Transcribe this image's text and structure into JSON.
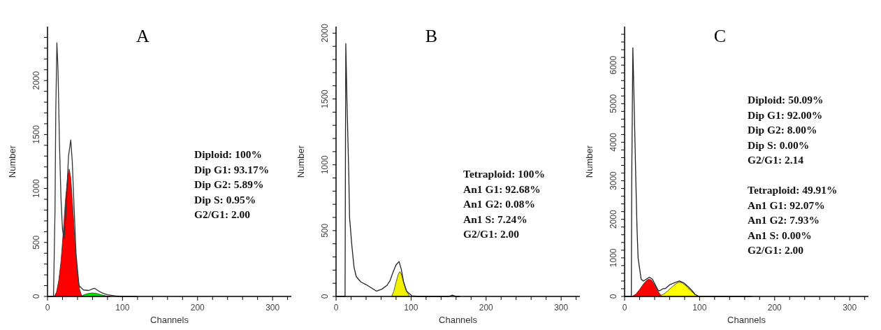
{
  "chart_data": [
    {
      "type": "line",
      "title": "A",
      "xlabel": "Channels",
      "ylabel": "Number",
      "xlim": [
        0,
        325
      ],
      "ylim": [
        0,
        2500
      ],
      "xticks": [
        0,
        {
          "value": 20,
          "label": null
        },
        {
          "value": 40,
          "label": null
        },
        {
          "value": 60,
          "label": null
        },
        {
          "value": 80,
          "label": null
        },
        100,
        {
          "value": 120,
          "label": null
        },
        {
          "value": 140,
          "label": null
        },
        {
          "value": 160,
          "label": null
        },
        {
          "value": 180,
          "label": null
        },
        200,
        {
          "value": 220,
          "label": null
        },
        {
          "value": 240,
          "label": null
        },
        {
          "value": 260,
          "label": null
        },
        {
          "value": 280,
          "label": null
        },
        300,
        {
          "value": 320,
          "label": null
        }
      ],
      "yticks": [
        0,
        {
          "value": 100,
          "label": null
        },
        {
          "value": 200,
          "label": null
        },
        {
          "value": 300,
          "label": null
        },
        {
          "value": 400,
          "label": null
        },
        500,
        {
          "value": 600,
          "label": null
        },
        {
          "value": 700,
          "label": null
        },
        {
          "value": 800,
          "label": null
        },
        {
          "value": 900,
          "label": null
        },
        1000,
        {
          "value": 1100,
          "label": null
        },
        {
          "value": 1200,
          "label": null
        },
        {
          "value": 1300,
          "label": null
        },
        {
          "value": 1400,
          "label": null
        },
        1500,
        {
          "value": 1600,
          "label": null
        },
        {
          "value": 1700,
          "label": null
        },
        {
          "value": 1800,
          "label": null
        },
        {
          "value": 1900,
          "label": null
        },
        2000,
        {
          "value": 2100,
          "label": null
        },
        {
          "value": 2200,
          "label": null
        },
        {
          "value": 2300,
          "label": null
        },
        {
          "value": 2400,
          "label": null
        }
      ],
      "annotations": [
        "Diploid: 100%\nDip G1: 93.17%\nDip G2: 5.89%\nDip S: 0.95%\nG2/G1: 2.00"
      ],
      "series": [
        {
          "type": "area",
          "color": "#ff0000",
          "x": [
            9,
            12,
            15,
            18,
            21,
            24,
            27,
            29,
            31,
            34,
            37,
            40,
            43,
            46
          ],
          "values": [
            0,
            40,
            150,
            330,
            600,
            900,
            1120,
            1180,
            1100,
            800,
            450,
            200,
            60,
            0
          ]
        },
        {
          "type": "area",
          "color": "#00e000",
          "x": [
            44,
            50,
            55,
            60,
            63,
            67,
            72,
            78,
            84
          ],
          "values": [
            0,
            20,
            28,
            32,
            30,
            25,
            15,
            5,
            0
          ]
        },
        {
          "color": "#333333",
          "x": [
            0,
            8,
            10,
            11,
            12.5,
            14,
            16,
            18,
            20,
            22,
            24,
            26,
            28,
            31,
            33,
            35,
            38,
            42,
            48,
            55,
            60,
            63,
            67,
            72,
            80,
            90,
            100,
            120
          ],
          "values": [
            0,
            0,
            800,
            1700,
            2350,
            2100,
            1400,
            900,
            620,
            530,
            700,
            1000,
            1300,
            1450,
            1250,
            900,
            400,
            100,
            60,
            55,
            70,
            75,
            55,
            35,
            15,
            5,
            0,
            0
          ]
        }
      ]
    },
    {
      "type": "line",
      "title": "B",
      "xlabel": "Channels",
      "ylabel": "Number",
      "xlim": [
        0,
        325
      ],
      "ylim": [
        0,
        2050
      ],
      "xticks": [
        0,
        {
          "value": 20,
          "label": null
        },
        {
          "value": 40,
          "label": null
        },
        {
          "value": 60,
          "label": null
        },
        {
          "value": 80,
          "label": null
        },
        100,
        {
          "value": 120,
          "label": null
        },
        {
          "value": 140,
          "label": null
        },
        {
          "value": 160,
          "label": null
        },
        {
          "value": 180,
          "label": null
        },
        200,
        {
          "value": 220,
          "label": null
        },
        {
          "value": 240,
          "label": null
        },
        {
          "value": 260,
          "label": null
        },
        {
          "value": 280,
          "label": null
        },
        300,
        {
          "value": 320,
          "label": null
        }
      ],
      "yticks": [
        0,
        {
          "value": 100,
          "label": null
        },
        {
          "value": 200,
          "label": null
        },
        {
          "value": 300,
          "label": null
        },
        {
          "value": 400,
          "label": null
        },
        500,
        {
          "value": 600,
          "label": null
        },
        {
          "value": 700,
          "label": null
        },
        {
          "value": 800,
          "label": null
        },
        {
          "value": 900,
          "label": null
        },
        1000,
        {
          "value": 1100,
          "label": null
        },
        {
          "value": 1200,
          "label": null
        },
        {
          "value": 1300,
          "label": null
        },
        {
          "value": 1400,
          "label": null
        },
        1500,
        {
          "value": 1600,
          "label": null
        },
        {
          "value": 1700,
          "label": null
        },
        {
          "value": 1800,
          "label": null
        },
        {
          "value": 1900,
          "label": null
        },
        2000
      ],
      "annotations": [
        "Tetraploid: 100%\nAn1 G1: 92.68%\nAn1 G2: 0.08%\nAn1 S: 7.24%\nG2/G1: 2.00"
      ],
      "series": [
        {
          "type": "area",
          "color": "#f0f000",
          "x": [
            74,
            77,
            80,
            83,
            85,
            87,
            90,
            94,
            98
          ],
          "values": [
            0,
            40,
            110,
            170,
            188,
            170,
            110,
            40,
            0
          ]
        },
        {
          "color": "#222222",
          "x": [
            0,
            12,
            12.5,
            13,
            14.5,
            17,
            18,
            21,
            24,
            27,
            33,
            40,
            47,
            54,
            61,
            68,
            72,
            76,
            80,
            84,
            87,
            90,
            94,
            101,
            110,
            130,
            150,
            155,
            160,
            165
          ],
          "values": [
            0,
            0,
            1000,
            1920,
            1500,
            920,
            600,
            390,
            220,
            150,
            110,
            90,
            65,
            40,
            55,
            85,
            120,
            185,
            240,
            265,
            205,
            110,
            40,
            5,
            0,
            0,
            0,
            10,
            0,
            0
          ]
        }
      ]
    },
    {
      "type": "line",
      "title": "C",
      "xlabel": "Channels",
      "ylabel": "Number",
      "xlim": [
        0,
        325
      ],
      "ylim": [
        0,
        7000
      ],
      "xticks": [
        0,
        {
          "value": 20,
          "label": null
        },
        {
          "value": 40,
          "label": null
        },
        {
          "value": 60,
          "label": null
        },
        {
          "value": 80,
          "label": null
        },
        100,
        {
          "value": 120,
          "label": null
        },
        {
          "value": 140,
          "label": null
        },
        {
          "value": 160,
          "label": null
        },
        {
          "value": 180,
          "label": null
        },
        200,
        {
          "value": 220,
          "label": null
        },
        {
          "value": 240,
          "label": null
        },
        {
          "value": 260,
          "label": null
        },
        {
          "value": 280,
          "label": null
        },
        300,
        {
          "value": 320,
          "label": null
        }
      ],
      "yticks": [
        0,
        {
          "value": 200,
          "label": null
        },
        {
          "value": 400,
          "label": null
        },
        {
          "value": 600,
          "label": null
        },
        {
          "value": 800,
          "label": null
        },
        1000,
        {
          "value": 1200,
          "label": null
        },
        {
          "value": 1400,
          "label": null
        },
        {
          "value": 1600,
          "label": null
        },
        {
          "value": 1800,
          "label": null
        },
        2000,
        {
          "value": 2200,
          "label": null
        },
        {
          "value": 2400,
          "label": null
        },
        {
          "value": 2600,
          "label": null
        },
        {
          "value": 2800,
          "label": null
        },
        3000,
        {
          "value": 3200,
          "label": null
        },
        {
          "value": 3400,
          "label": null
        },
        {
          "value": 3600,
          "label": null
        },
        {
          "value": 3800,
          "label": null
        },
        4000,
        {
          "value": 4200,
          "label": null
        },
        {
          "value": 4400,
          "label": null
        },
        {
          "value": 4600,
          "label": null
        },
        {
          "value": 4800,
          "label": null
        },
        5000,
        {
          "value": 5200,
          "label": null
        },
        {
          "value": 5400,
          "label": null
        },
        {
          "value": 5600,
          "label": null
        },
        {
          "value": 5800,
          "label": null
        },
        6000,
        {
          "value": 6200,
          "label": null
        },
        {
          "value": 6400,
          "label": null
        },
        {
          "value": 6600,
          "label": null
        },
        {
          "value": 6800,
          "label": null
        }
      ],
      "annotations": [
        "Diploid: 50.09%\nDip G1: 92.00%\nDip G2: 8.00%\nDip S: 0.00%\nG2/G1: 2.14",
        "Tetraploid: 49.91%\nAn1 G1: 92.07%\nAn1 G2: 7.93%\nAn1 S: 0.00%\nG2/G1: 2.00"
      ],
      "series": [
        {
          "type": "area",
          "color": "#ff0000",
          "x": [
            10,
            15,
            20,
            25,
            30,
            33,
            36,
            40,
            44,
            48,
            52
          ],
          "values": [
            0,
            60,
            180,
            320,
            430,
            450,
            420,
            300,
            150,
            40,
            0
          ]
        },
        {
          "type": "area",
          "color": "#ffff00",
          "x": [
            45,
            52,
            58,
            64,
            70,
            73,
            77,
            82,
            88,
            94,
            100
          ],
          "values": [
            0,
            60,
            150,
            260,
            350,
            370,
            350,
            270,
            150,
            50,
            0
          ]
        },
        {
          "color": "#222222",
          "x": [
            0,
            9,
            9.5,
            11,
            12.5,
            15,
            16.5,
            18,
            22,
            25,
            29,
            33,
            37,
            41,
            45,
            47,
            51,
            54,
            60,
            66,
            73,
            79,
            85,
            90,
            94,
            99,
            104,
            120,
            140,
            165,
            170
          ],
          "values": [
            0,
            0,
            3000,
            6450,
            5200,
            3000,
            1800,
            1000,
            450,
            400,
            450,
            500,
            450,
            300,
            150,
            150,
            200,
            200,
            300,
            350,
            400,
            350,
            250,
            150,
            50,
            0,
            0,
            0,
            0,
            0,
            0
          ]
        }
      ]
    }
  ]
}
